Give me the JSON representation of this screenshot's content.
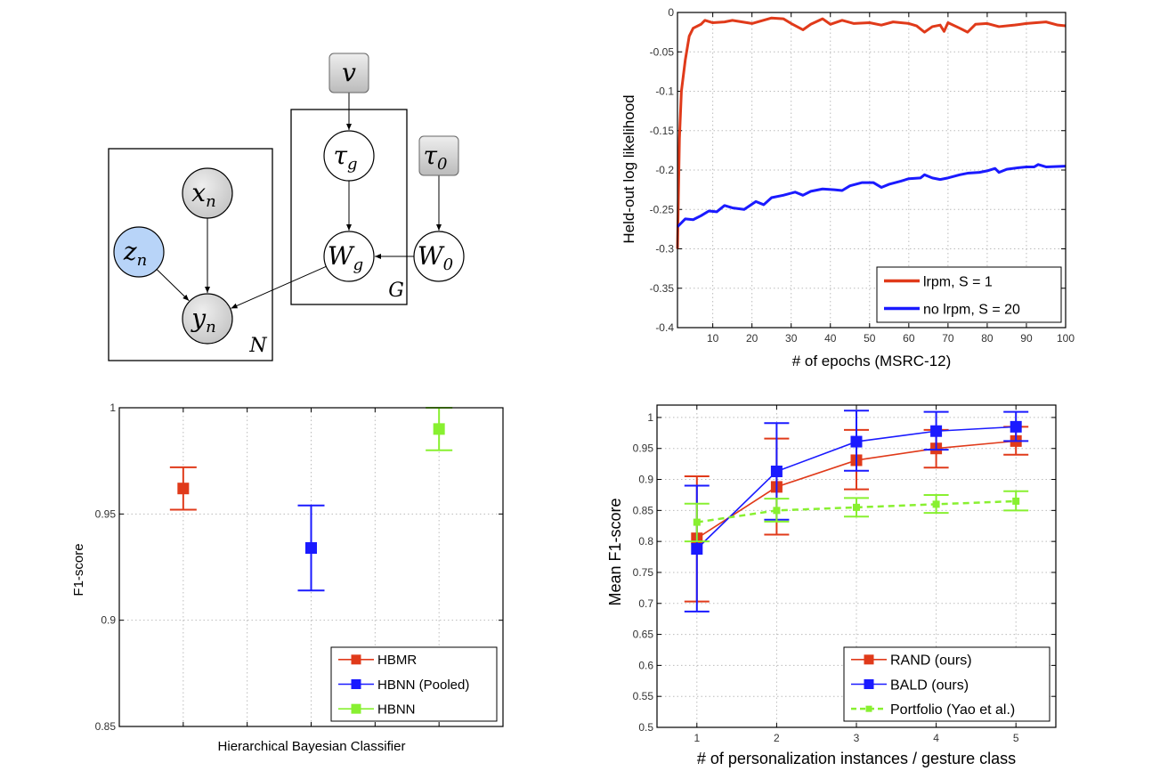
{
  "diagram": {
    "nodes": [
      {
        "id": "v",
        "base": "v",
        "sub": "",
        "kind": "hyperparameter"
      },
      {
        "id": "tau_g",
        "base": "τ",
        "sub": "g",
        "kind": "latent"
      },
      {
        "id": "W_g",
        "base": "W",
        "sub": "g",
        "kind": "latent"
      },
      {
        "id": "tau_0",
        "base": "τ",
        "sub": "0",
        "kind": "hyperparameter"
      },
      {
        "id": "W_0",
        "base": "W",
        "sub": "0",
        "kind": "latent"
      },
      {
        "id": "x_n",
        "base": "x",
        "sub": "n",
        "kind": "observed"
      },
      {
        "id": "z_n",
        "base": "z",
        "sub": "n",
        "kind": "context"
      },
      {
        "id": "y_n",
        "base": "y",
        "sub": "n",
        "kind": "observed"
      }
    ],
    "edges": [
      [
        "v",
        "tau_g"
      ],
      [
        "tau_g",
        "W_g"
      ],
      [
        "tau_0",
        "W_0"
      ],
      [
        "W_0",
        "W_g"
      ],
      [
        "W_g",
        "y_n"
      ],
      [
        "x_n",
        "y_n"
      ],
      [
        "z_n",
        "y_n"
      ]
    ],
    "plates": [
      {
        "label": "G"
      },
      {
        "label": "N"
      }
    ],
    "colors": {
      "observed": "#d0d0d0",
      "context": "#b8d4f8",
      "hyperparameter": "#c8c8c8",
      "latent": "#ffffff"
    }
  },
  "chart_data": [
    {
      "type": "line",
      "title": "",
      "xlabel": "# of epochs (MSRC-12)",
      "ylabel": "Held-out log likelihood",
      "xlim": [
        1,
        100
      ],
      "ylim": [
        -0.4,
        0
      ],
      "xticks": [
        10,
        20,
        30,
        40,
        50,
        60,
        70,
        80,
        90,
        100
      ],
      "yticks": [
        -0.4,
        -0.35,
        -0.3,
        -0.25,
        -0.2,
        -0.15,
        -0.1,
        -0.05,
        0
      ],
      "ytick_labels": [
        "-0.4",
        "-0.35",
        "-0.3",
        "-0.25",
        "-0.2",
        "-0.15",
        "-0.1",
        "-0.05",
        "0"
      ],
      "grid": true,
      "legend": "bottom-right",
      "series": [
        {
          "name": "lrpm, S = 1",
          "color": "#e03a1a",
          "points": [
            [
              1,
              -0.3
            ],
            [
              1.5,
              -0.16
            ],
            [
              2,
              -0.1
            ],
            [
              3,
              -0.06
            ],
            [
              4,
              -0.03
            ],
            [
              5,
              -0.02
            ],
            [
              7,
              -0.015
            ],
            [
              8,
              -0.01
            ],
            [
              10,
              -0.013
            ],
            [
              13,
              -0.012
            ],
            [
              15,
              -0.01
            ],
            [
              20,
              -0.014
            ],
            [
              25,
              -0.007
            ],
            [
              28,
              -0.008
            ],
            [
              30,
              -0.014
            ],
            [
              33,
              -0.022
            ],
            [
              35,
              -0.015
            ],
            [
              38,
              -0.008
            ],
            [
              40,
              -0.015
            ],
            [
              43,
              -0.01
            ],
            [
              46,
              -0.014
            ],
            [
              50,
              -0.013
            ],
            [
              53,
              -0.016
            ],
            [
              56,
              -0.012
            ],
            [
              60,
              -0.014
            ],
            [
              62,
              -0.017
            ],
            [
              64,
              -0.025
            ],
            [
              66,
              -0.018
            ],
            [
              68,
              -0.016
            ],
            [
              69,
              -0.024
            ],
            [
              70,
              -0.013
            ],
            [
              73,
              -0.02
            ],
            [
              75,
              -0.025
            ],
            [
              77,
              -0.015
            ],
            [
              80,
              -0.014
            ],
            [
              83,
              -0.018
            ],
            [
              87,
              -0.016
            ],
            [
              90,
              -0.014
            ],
            [
              95,
              -0.012
            ],
            [
              98,
              -0.016
            ],
            [
              100,
              -0.017
            ]
          ]
        },
        {
          "name": "no lrpm, S = 20",
          "color": "#1a1aff",
          "points": [
            [
              1,
              -0.272
            ],
            [
              3,
              -0.262
            ],
            [
              5,
              -0.263
            ],
            [
              7,
              -0.258
            ],
            [
              9,
              -0.252
            ],
            [
              11,
              -0.253
            ],
            [
              13,
              -0.245
            ],
            [
              15,
              -0.248
            ],
            [
              18,
              -0.25
            ],
            [
              21,
              -0.24
            ],
            [
              23,
              -0.244
            ],
            [
              25,
              -0.235
            ],
            [
              28,
              -0.232
            ],
            [
              31,
              -0.228
            ],
            [
              33,
              -0.232
            ],
            [
              35,
              -0.227
            ],
            [
              38,
              -0.224
            ],
            [
              41,
              -0.225
            ],
            [
              43,
              -0.226
            ],
            [
              45,
              -0.22
            ],
            [
              48,
              -0.216
            ],
            [
              51,
              -0.216
            ],
            [
              53,
              -0.222
            ],
            [
              55,
              -0.218
            ],
            [
              58,
              -0.214
            ],
            [
              60,
              -0.211
            ],
            [
              63,
              -0.21
            ],
            [
              64,
              -0.206
            ],
            [
              66,
              -0.21
            ],
            [
              68,
              -0.212
            ],
            [
              70,
              -0.21
            ],
            [
              73,
              -0.206
            ],
            [
              75,
              -0.204
            ],
            [
              78,
              -0.203
            ],
            [
              80,
              -0.201
            ],
            [
              82,
              -0.198
            ],
            [
              83,
              -0.203
            ],
            [
              85,
              -0.199
            ],
            [
              88,
              -0.197
            ],
            [
              90,
              -0.196
            ],
            [
              92,
              -0.196
            ],
            [
              93,
              -0.193
            ],
            [
              95,
              -0.196
            ],
            [
              100,
              -0.195
            ]
          ]
        }
      ]
    },
    {
      "type": "errorbar",
      "title": "",
      "xlabel": "Hierarchical Bayesian Classifier",
      "ylabel": "F1-score",
      "xlim": [
        0.5,
        3.5
      ],
      "ylim": [
        0.85,
        1
      ],
      "xticks": [
        0.5,
        1,
        1.5,
        2,
        2.5,
        3,
        3.5
      ],
      "xtick_labels": [],
      "yticks": [
        0.85,
        0.9,
        0.95,
        1
      ],
      "ytick_labels": [
        "0.85",
        "0.9",
        "0.95",
        "1"
      ],
      "grid": true,
      "legend": "bottom-right",
      "series": [
        {
          "name": "HBMR",
          "color": "#e03a1a",
          "x": [
            1
          ],
          "y": [
            0.962
          ],
          "lo": [
            0.952
          ],
          "hi": [
            0.972
          ]
        },
        {
          "name": "HBNN (Pooled)",
          "color": "#1a1aff",
          "x": [
            2
          ],
          "y": [
            0.934
          ],
          "lo": [
            0.914
          ],
          "hi": [
            0.954
          ]
        },
        {
          "name": "HBNN",
          "color": "#88f030",
          "x": [
            3
          ],
          "y": [
            0.99
          ],
          "lo": [
            0.98
          ],
          "hi": [
            1.0
          ]
        }
      ]
    },
    {
      "type": "errorbar-line",
      "title": "",
      "xlabel": "# of personalization instances / gesture class",
      "ylabel": "Mean F1-score",
      "xlim": [
        0.5,
        5.5
      ],
      "ylim": [
        0.5,
        1.02
      ],
      "xticks": [
        1,
        2,
        3,
        4,
        5
      ],
      "xtick_labels": [
        "1",
        "2",
        "3",
        "4",
        "5"
      ],
      "yticks": [
        0.5,
        0.55,
        0.6,
        0.65,
        0.7,
        0.75,
        0.8,
        0.85,
        0.9,
        0.95,
        1
      ],
      "ytick_labels": [
        "0.5",
        "0.55",
        "0.6",
        "0.65",
        "0.7",
        "0.75",
        "0.8",
        "0.85",
        "0.9",
        "0.95",
        "1"
      ],
      "grid": true,
      "legend": "bottom-right",
      "series": [
        {
          "name": "RAND (ours)",
          "color": "#e03a1a",
          "dashed": false,
          "x": [
            1,
            2,
            3,
            4,
            5
          ],
          "y": [
            0.805,
            0.888,
            0.931,
            0.95,
            0.962
          ],
          "lo": [
            0.703,
            0.811,
            0.884,
            0.919,
            0.94
          ],
          "hi": [
            0.905,
            0.966,
            0.98,
            0.98,
            0.985
          ]
        },
        {
          "name": "BALD (ours)",
          "color": "#1a1aff",
          "dashed": false,
          "x": [
            1,
            2,
            3,
            4,
            5
          ],
          "y": [
            0.788,
            0.913,
            0.961,
            0.978,
            0.985
          ],
          "lo": [
            0.687,
            0.835,
            0.914,
            0.948,
            0.962
          ],
          "hi": [
            0.89,
            0.991,
            1.011,
            1.009,
            1.009
          ]
        },
        {
          "name": "Portfolio (Yao et al.)",
          "color": "#88f030",
          "dashed": true,
          "x": [
            1,
            2,
            3,
            4,
            5
          ],
          "y": [
            0.831,
            0.85,
            0.855,
            0.86,
            0.865
          ],
          "lo": [
            0.8,
            0.832,
            0.84,
            0.846,
            0.85
          ],
          "hi": [
            0.861,
            0.869,
            0.87,
            0.875,
            0.881
          ]
        }
      ]
    }
  ]
}
